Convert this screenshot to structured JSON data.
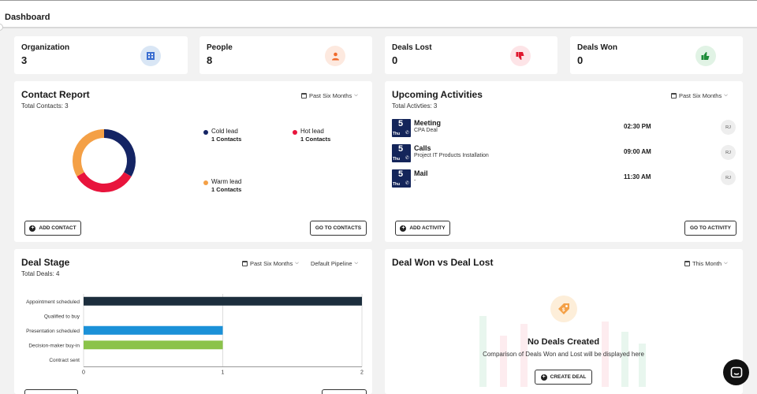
{
  "page": {
    "title": "Dashboard"
  },
  "stats": [
    {
      "label": "Organization",
      "value": "3",
      "icon": "building-icon",
      "color": "#3b6fd1",
      "bg": "#d9e6f5"
    },
    {
      "label": "People",
      "value": "8",
      "icon": "person-icon",
      "color": "#f06a2c",
      "bg": "#fde9df"
    },
    {
      "label": "Deals Lost",
      "value": "0",
      "icon": "thumbs-down-icon",
      "color": "#e0182f",
      "bg": "#fde4e7"
    },
    {
      "label": "Deals Won",
      "value": "0",
      "icon": "thumbs-up-icon",
      "color": "#1e8c3a",
      "bg": "#e1f3e5"
    }
  ],
  "contact_report": {
    "title": "Contact Report",
    "subtitle": "Total Contacts: 3",
    "period": "Past Six Months",
    "legend": [
      {
        "name": "Cold lead",
        "count": "1 Contacts",
        "color": "#142464"
      },
      {
        "name": "Hot lead",
        "count": "1 Contacts",
        "color": "#e8143c"
      },
      {
        "name": "Warm lead",
        "count": "1 Contacts",
        "color": "#f4a046"
      }
    ],
    "add_button": "ADD CONTACT",
    "go_button": "GO TO CONTACTS"
  },
  "upcoming": {
    "title": "Upcoming Activities",
    "subtitle": "Total Activties: 3",
    "period": "Past Six Months",
    "items": [
      {
        "day": "5",
        "weekday": "Thu",
        "name": "Meeting",
        "desc": "CPA Deal",
        "time": "02:30 PM",
        "initials": "RJ"
      },
      {
        "day": "5",
        "weekday": "Thu",
        "name": "Calls",
        "desc": "Project IT Products Installation",
        "time": "09:00 AM",
        "initials": "RJ"
      },
      {
        "day": "5",
        "weekday": "Thu",
        "name": "Mail",
        "desc": "-",
        "time": "11:30 AM",
        "initials": "RJ"
      }
    ],
    "add_button": "ADD ACTIVITY",
    "go_button": "GO TO ACTIVITY"
  },
  "deal_stage": {
    "title": "Deal Stage",
    "subtitle": "Total Deals: 4",
    "period": "Past Six Months",
    "pipeline": "Default Pipeline"
  },
  "chart_data": {
    "type": "bar",
    "orientation": "horizontal",
    "categories": [
      "Appointment scheduled",
      "Qualified to buy",
      "Presentation scheduled",
      "Decision-maker buy-in",
      "Contract sent"
    ],
    "values": [
      2,
      0,
      1,
      1,
      0
    ],
    "colors": [
      "#1c2e3d",
      "#1c2e3d",
      "#1b91d8",
      "#8bc34a",
      "#1c2e3d"
    ],
    "xlim": [
      0,
      2
    ],
    "xticks": [
      "0",
      "1",
      "2"
    ],
    "grid": true
  },
  "won_vs_lost": {
    "title": "Deal Won vs Deal Lost",
    "period": "This Month",
    "empty_title": "No Deals Created",
    "empty_sub": "Comparison of Deals Won and Lost will be displayed here",
    "create_button": "CREATE DEAL"
  }
}
